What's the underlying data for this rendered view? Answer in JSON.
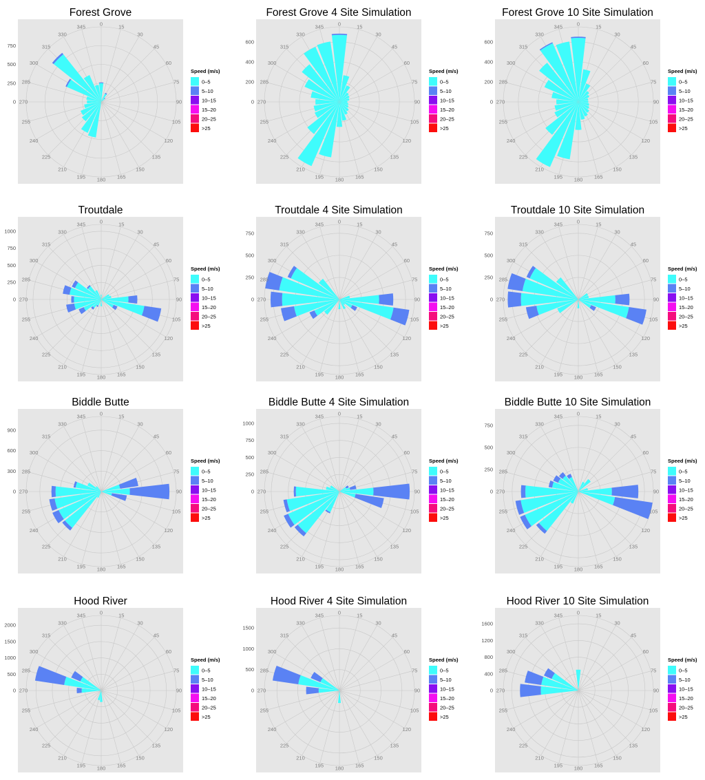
{
  "legend": {
    "title": "Speed (m/s)",
    "bins": [
      {
        "label": "0–5",
        "color": "#3ffcfc"
      },
      {
        "label": "5–10",
        "color": "#5a82f4"
      },
      {
        "label": "10–15",
        "color": "#8a0ff0"
      },
      {
        "label": "15–20",
        "color": "#f50ef0"
      },
      {
        "label": "20–25",
        "color": "#f50d7d"
      },
      {
        "label": ">25",
        "color": "#fc0d0d"
      }
    ]
  },
  "direction_labels": [
    "0",
    "15",
    "30",
    "45",
    "60",
    "75",
    "90",
    "105",
    "120",
    "135",
    "150",
    "165",
    "180",
    "195",
    "210",
    "225",
    "240",
    "255",
    "270",
    "285",
    "300",
    "315",
    "330",
    "345"
  ],
  "chart_data": [
    {
      "type": "rose",
      "title": "Forest Grove",
      "rmax": 1000,
      "radial_ticks": [
        0,
        250,
        500,
        750
      ],
      "bins": [
        [
          250,
          10
        ],
        [
          0,
          0
        ],
        [
          120,
          12
        ],
        [
          60,
          10
        ],
        [
          0,
          0
        ],
        [
          0,
          0
        ],
        [
          0,
          0
        ],
        [
          0,
          0
        ],
        [
          0,
          0
        ],
        [
          0,
          0
        ],
        [
          0,
          0
        ],
        [
          0,
          0
        ],
        [
          0,
          0
        ],
        [
          480,
          0
        ],
        [
          450,
          0
        ],
        [
          330,
          0
        ],
        [
          300,
          0
        ],
        [
          230,
          0
        ],
        [
          190,
          0
        ],
        [
          200,
          0
        ],
        [
          500,
          18
        ],
        [
          810,
          25
        ],
        [
          390,
          0
        ],
        [
          230,
          0
        ]
      ]
    },
    {
      "type": "rose",
      "title": "Forest Grove 4 Site Simulation",
      "rmax": 750,
      "radial_ticks": [
        0,
        200,
        400,
        600
      ],
      "bins": [
        [
          670,
          12
        ],
        [
          270,
          0
        ],
        [
          180,
          0
        ],
        [
          120,
          0
        ],
        [
          110,
          0
        ],
        [
          100,
          0
        ],
        [
          80,
          0
        ],
        [
          90,
          0
        ],
        [
          100,
          0
        ],
        [
          120,
          0
        ],
        [
          140,
          0
        ],
        [
          190,
          0
        ],
        [
          250,
          0
        ],
        [
          560,
          0
        ],
        [
          700,
          0
        ],
        [
          410,
          0
        ],
        [
          270,
          0
        ],
        [
          260,
          0
        ],
        [
          240,
          0
        ],
        [
          290,
          0
        ],
        [
          380,
          0
        ],
        [
          480,
          0
        ],
        [
          600,
          0
        ],
        [
          610,
          0
        ]
      ]
    },
    {
      "type": "rose",
      "title": "Forest Grove 10 Site Simulation",
      "rmax": 750,
      "radial_ticks": [
        0,
        200,
        400,
        600
      ],
      "bins": [
        [
          640,
          12
        ],
        [
          330,
          0
        ],
        [
          200,
          0
        ],
        [
          140,
          0
        ],
        [
          120,
          0
        ],
        [
          100,
          0
        ],
        [
          100,
          0
        ],
        [
          110,
          0
        ],
        [
          120,
          0
        ],
        [
          140,
          0
        ],
        [
          160,
          0
        ],
        [
          180,
          0
        ],
        [
          280,
          0
        ],
        [
          580,
          0
        ],
        [
          710,
          0
        ],
        [
          420,
          0
        ],
        [
          260,
          0
        ],
        [
          240,
          0
        ],
        [
          220,
          0
        ],
        [
          270,
          0
        ],
        [
          370,
          0
        ],
        [
          500,
          0
        ],
        [
          640,
          10
        ],
        [
          610,
          0
        ]
      ]
    },
    {
      "type": "rose",
      "title": "Troutdale",
      "rmax": 1100,
      "radial_ticks": [
        0,
        250,
        500,
        750,
        1000
      ],
      "bins": [
        [
          70,
          0
        ],
        [
          0,
          0
        ],
        [
          0,
          0
        ],
        [
          0,
          0
        ],
        [
          130,
          0
        ],
        [
          150,
          0
        ],
        [
          400,
          130
        ],
        [
          640,
          250
        ],
        [
          200,
          60
        ],
        [
          0,
          0
        ],
        [
          0,
          0
        ],
        [
          0,
          0
        ],
        [
          100,
          0
        ],
        [
          0,
          0
        ],
        [
          100,
          20
        ],
        [
          160,
          30
        ],
        [
          280,
          80
        ],
        [
          400,
          120
        ],
        [
          400,
          40
        ],
        [
          470,
          100
        ],
        [
          420,
          50
        ],
        [
          250,
          20
        ],
        [
          150,
          0
        ],
        [
          0,
          0
        ]
      ]
    },
    {
      "type": "rose",
      "title": "Troutdale 4 Site Simulation",
      "rmax": 850,
      "radial_ticks": [
        0,
        250,
        500,
        750
      ],
      "bins": [
        [
          0,
          0
        ],
        [
          0,
          0
        ],
        [
          0,
          0
        ],
        [
          0,
          0
        ],
        [
          0,
          0
        ],
        [
          120,
          0
        ],
        [
          450,
          160
        ],
        [
          620,
          180
        ],
        [
          160,
          60
        ],
        [
          80,
          0
        ],
        [
          120,
          0
        ],
        [
          0,
          0
        ],
        [
          110,
          0
        ],
        [
          0,
          0
        ],
        [
          0,
          0
        ],
        [
          220,
          0
        ],
        [
          310,
          60
        ],
        [
          520,
          150
        ],
        [
          650,
          130
        ],
        [
          690,
          170
        ],
        [
          600,
          40
        ],
        [
          300,
          0
        ],
        [
          0,
          0
        ],
        [
          0,
          0
        ]
      ]
    },
    {
      "type": "rose",
      "title": "Troutdale 10 Site Simulation",
      "rmax": 850,
      "radial_ticks": [
        0,
        250,
        500,
        750
      ],
      "bins": [
        [
          0,
          0
        ],
        [
          0,
          0
        ],
        [
          0,
          0
        ],
        [
          0,
          0
        ],
        [
          120,
          0
        ],
        [
          120,
          0
        ],
        [
          420,
          160
        ],
        [
          580,
          200
        ],
        [
          160,
          60
        ],
        [
          0,
          0
        ],
        [
          0,
          0
        ],
        [
          0,
          0
        ],
        [
          100,
          0
        ],
        [
          0,
          0
        ],
        [
          0,
          0
        ],
        [
          0,
          0
        ],
        [
          260,
          0
        ],
        [
          480,
          120
        ],
        [
          650,
          150
        ],
        [
          640,
          170
        ],
        [
          600,
          40
        ],
        [
          320,
          0
        ],
        [
          0,
          0
        ],
        [
          0,
          0
        ]
      ]
    },
    {
      "type": "rose",
      "title": "Biddle Butte",
      "rmax": 1100,
      "radial_ticks": [
        0,
        300,
        600,
        900
      ],
      "bins": [
        [
          0,
          0
        ],
        [
          0,
          0
        ],
        [
          0,
          0
        ],
        [
          0,
          0
        ],
        [
          0,
          0
        ],
        [
          280,
          270
        ],
        [
          420,
          580
        ],
        [
          160,
          220
        ],
        [
          0,
          0
        ],
        [
          0,
          0
        ],
        [
          0,
          0
        ],
        [
          0,
          0
        ],
        [
          0,
          0
        ],
        [
          0,
          0
        ],
        [
          100,
          0
        ],
        [
          680,
          50
        ],
        [
          680,
          100
        ],
        [
          690,
          80
        ],
        [
          670,
          60
        ],
        [
          380,
          30
        ],
        [
          220,
          0
        ],
        [
          100,
          0
        ],
        [
          0,
          0
        ],
        [
          0,
          0
        ]
      ]
    },
    {
      "type": "rose",
      "title": "Biddle Butte 4 Site Simulation",
      "rmax": 1100,
      "radial_ticks": [
        0,
        250,
        500,
        750,
        1000
      ],
      "bins": [
        [
          0,
          0
        ],
        [
          0,
          0
        ],
        [
          0,
          0
        ],
        [
          0,
          0
        ],
        [
          110,
          40
        ],
        [
          160,
          90
        ],
        [
          500,
          530
        ],
        [
          240,
          420
        ],
        [
          0,
          0
        ],
        [
          0,
          0
        ],
        [
          0,
          0
        ],
        [
          0,
          0
        ],
        [
          0,
          0
        ],
        [
          0,
          0
        ],
        [
          330,
          20
        ],
        [
          780,
          60
        ],
        [
          820,
          70
        ],
        [
          780,
          50
        ],
        [
          640,
          30
        ],
        [
          200,
          0
        ],
        [
          150,
          0
        ],
        [
          0,
          0
        ],
        [
          0,
          0
        ],
        [
          0,
          0
        ]
      ]
    },
    {
      "type": "rose",
      "title": "Biddle Butte 10 Site Simulation",
      "rmax": 850,
      "radial_ticks": [
        0,
        250,
        500,
        750
      ],
      "bins": [
        [
          0,
          0
        ],
        [
          0,
          0
        ],
        [
          120,
          0
        ],
        [
          180,
          0
        ],
        [
          0,
          0
        ],
        [
          110,
          0
        ],
        [
          380,
          300
        ],
        [
          420,
          500
        ],
        [
          0,
          0
        ],
        [
          0,
          0
        ],
        [
          0,
          0
        ],
        [
          0,
          0
        ],
        [
          0,
          0
        ],
        [
          0,
          0
        ],
        [
          150,
          0
        ],
        [
          570,
          40
        ],
        [
          660,
          60
        ],
        [
          660,
          60
        ],
        [
          600,
          50
        ],
        [
          300,
          40
        ],
        [
          250,
          60
        ],
        [
          230,
          50
        ],
        [
          180,
          40
        ],
        [
          0,
          0
        ]
      ]
    },
    {
      "type": "rose",
      "title": "Hood River",
      "rmax": 2300,
      "radial_ticks": [
        0,
        500,
        1000,
        1500,
        2000
      ],
      "bins": [
        [
          0,
          0
        ],
        [
          0,
          0
        ],
        [
          0,
          0
        ],
        [
          0,
          0
        ],
        [
          0,
          0
        ],
        [
          0,
          0
        ],
        [
          0,
          0
        ],
        [
          0,
          0
        ],
        [
          0,
          0
        ],
        [
          0,
          0
        ],
        [
          0,
          0
        ],
        [
          0,
          0
        ],
        [
          350,
          0
        ],
        [
          300,
          0
        ],
        [
          0,
          0
        ],
        [
          0,
          0
        ],
        [
          0,
          0
        ],
        [
          0,
          0
        ],
        [
          600,
          150
        ],
        [
          1150,
          900
        ],
        [
          700,
          300
        ],
        [
          0,
          0
        ],
        [
          0,
          0
        ],
        [
          0,
          0
        ]
      ]
    },
    {
      "type": "rose",
      "title": "Hood River 4 Site Simulation",
      "rmax": 1800,
      "radial_ticks": [
        0,
        500,
        1000,
        1500
      ],
      "bins": [
        [
          0,
          0
        ],
        [
          0,
          0
        ],
        [
          0,
          0
        ],
        [
          0,
          0
        ],
        [
          0,
          0
        ],
        [
          0,
          0
        ],
        [
          0,
          0
        ],
        [
          0,
          0
        ],
        [
          0,
          0
        ],
        [
          0,
          0
        ],
        [
          0,
          0
        ],
        [
          0,
          0
        ],
        [
          300,
          0
        ],
        [
          0,
          0
        ],
        [
          0,
          0
        ],
        [
          0,
          0
        ],
        [
          0,
          0
        ],
        [
          0,
          0
        ],
        [
          500,
          300
        ],
        [
          1000,
          620
        ],
        [
          500,
          250
        ],
        [
          0,
          0
        ],
        [
          0,
          0
        ],
        [
          0,
          0
        ]
      ]
    },
    {
      "type": "rose",
      "title": "Hood River 10 Site Simulation",
      "rmax": 1800,
      "radial_ticks": [
        0,
        400,
        800,
        1200,
        1600
      ],
      "bins": [
        [
          500,
          0
        ],
        [
          0,
          0
        ],
        [
          0,
          0
        ],
        [
          0,
          0
        ],
        [
          0,
          0
        ],
        [
          0,
          0
        ],
        [
          0,
          0
        ],
        [
          0,
          0
        ],
        [
          0,
          0
        ],
        [
          0,
          0
        ],
        [
          0,
          0
        ],
        [
          0,
          0
        ],
        [
          0,
          0
        ],
        [
          0,
          0
        ],
        [
          0,
          0
        ],
        [
          0,
          0
        ],
        [
          0,
          0
        ],
        [
          0,
          0
        ],
        [
          900,
          500
        ],
        [
          900,
          400
        ],
        [
          700,
          200
        ],
        [
          0,
          0
        ],
        [
          0,
          0
        ],
        [
          0,
          0
        ]
      ]
    }
  ]
}
